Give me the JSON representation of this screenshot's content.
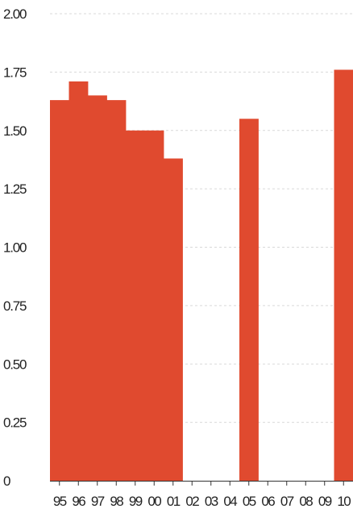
{
  "chart_data": {
    "type": "bar",
    "title": "",
    "xlabel": "",
    "ylabel": "",
    "categories": [
      "95",
      "96",
      "97",
      "98",
      "99",
      "00",
      "01",
      "02",
      "03",
      "04",
      "05",
      "06",
      "07",
      "08",
      "09",
      "10"
    ],
    "values": [
      1.63,
      1.71,
      1.65,
      1.63,
      1.5,
      1.5,
      1.38,
      null,
      null,
      null,
      1.55,
      null,
      null,
      null,
      null,
      1.76
    ],
    "ylim": [
      0,
      2.0
    ],
    "yticks": [
      0,
      0.25,
      0.5,
      0.75,
      1.0,
      1.25,
      1.5,
      1.75,
      2.0
    ],
    "ytick_labels": [
      "0",
      "0.25",
      "0.50",
      "0.75",
      "1.00",
      "1.25",
      "1.50",
      "1.75",
      "2.00"
    ],
    "grid": true,
    "bar_color": "#e04a2f",
    "gridline_color": "#d9d9d9"
  }
}
